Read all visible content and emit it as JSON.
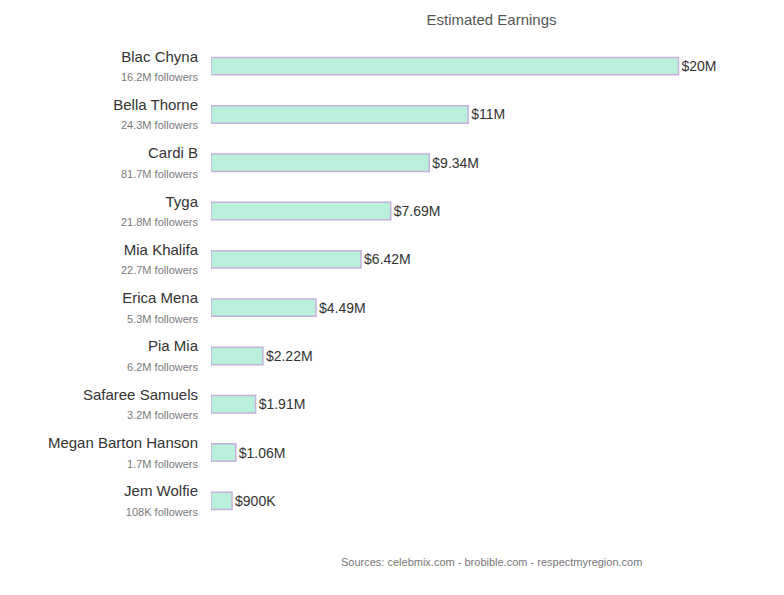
{
  "chart_data": {
    "type": "bar",
    "title": "Estimated Earnings",
    "orientation": "horizontal",
    "categories": [
      "Blac Chyna",
      "Bella Thorne",
      "Cardi B",
      "Tyga",
      "Mia Khalifa",
      "Erica Mena",
      "Pia Mia",
      "Safaree Samuels",
      "Megan Barton Hanson",
      "Jem Wolfie"
    ],
    "followers": [
      "16.2M followers",
      "24.3M followers",
      "81.7M followers",
      "21.8M followers",
      "22.7M followers",
      "5.3M followers",
      "6.2M followers",
      "3.2M followers",
      "1.7M followers",
      "108K followers"
    ],
    "values": [
      20000000,
      11000000,
      9340000,
      7690000,
      6420000,
      4490000,
      2220000,
      1910000,
      1060000,
      900000
    ],
    "value_labels": [
      "$20M",
      "$11M",
      "$9.34M",
      "$7.69M",
      "$6.42M",
      "$4.49M",
      "$2.22M",
      "$1.91M",
      "$1.06M",
      "$900K"
    ],
    "data_labels": true,
    "color": "#b8f0dc",
    "xlim": [
      0,
      24000000
    ],
    "tick_labels": "y",
    "grid": false,
    "annotations": [
      "Sources: celebmix.com - brobible.com - respectmyregion.com"
    ]
  }
}
